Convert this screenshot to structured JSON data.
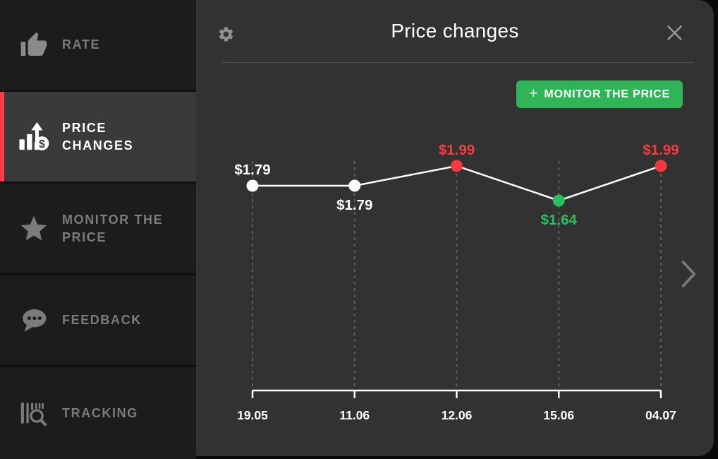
{
  "sidebar": {
    "items": [
      {
        "label": "RATE",
        "icon": "thumbs-up-icon",
        "active": false
      },
      {
        "label": "PRICE CHANGES",
        "icon": "price-chart-dollar-icon",
        "active": true
      },
      {
        "label": "MONITOR THE PRICE",
        "icon": "star-icon",
        "active": false
      },
      {
        "label": "FEEDBACK",
        "icon": "speech-bubble-icon",
        "active": false
      },
      {
        "label": "TRACKING",
        "icon": "barcode-search-icon",
        "active": false
      }
    ],
    "active_accent_color": "#fb4049"
  },
  "header": {
    "title": "Price changes",
    "gear_icon": "gear-icon",
    "close_icon": "close-icon"
  },
  "monitor_button": {
    "plus": "+",
    "label": "MONITOR THE PRICE",
    "color": "#2fb457"
  },
  "next_arrow": "chevron-right-icon",
  "chart_data": {
    "type": "line",
    "x": [
      "19.05",
      "11.06",
      "12.06",
      "15.06",
      "04.07"
    ],
    "values": [
      1.79,
      1.79,
      1.99,
      1.64,
      1.99
    ],
    "point_labels": [
      "$1.79",
      "$1.79",
      "$1.99",
      "$1.64",
      "$1.99"
    ],
    "point_colors": [
      "#ffffff",
      "#ffffff",
      "#f43b42",
      "#2abf5e",
      "#f43b42"
    ],
    "label_positions": [
      "above",
      "below",
      "above",
      "below",
      "above"
    ],
    "line_color": "#ffffff",
    "axis_color": "#ffffff",
    "grid_color": "#5f5f5f",
    "grid_style": "dashed-vertical",
    "ylim": [
      1.6,
      2.05
    ],
    "legend": "none"
  }
}
